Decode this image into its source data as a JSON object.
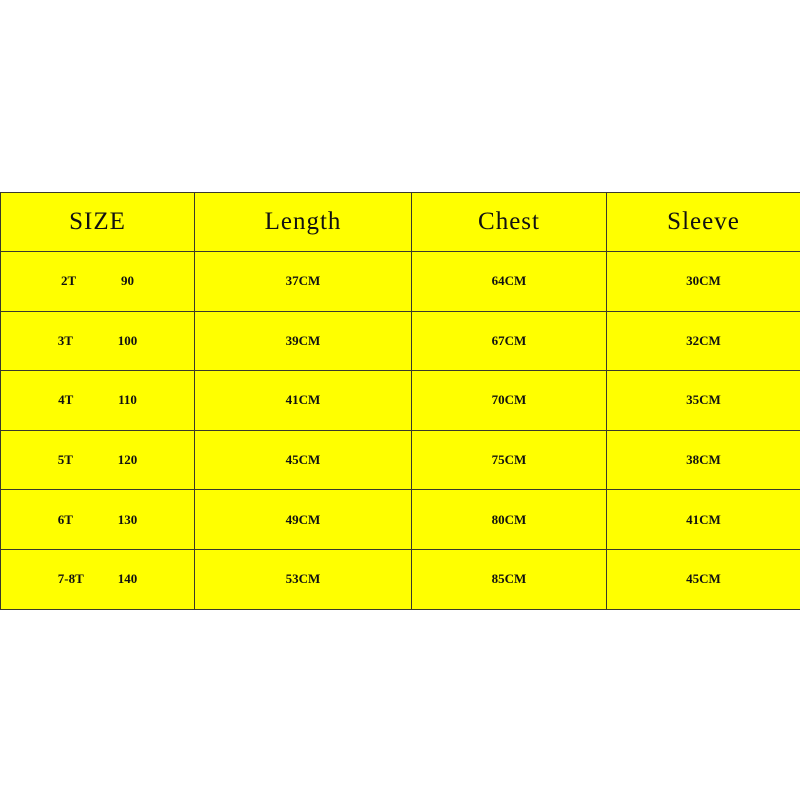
{
  "table": {
    "headers": [
      "SIZE",
      "Length",
      "Chest",
      "Sleeve"
    ],
    "rows": [
      {
        "size": "2T",
        "height": "90",
        "length": "37CM",
        "chest": "64CM",
        "sleeve": "30CM"
      },
      {
        "size": "3T",
        "height": "100",
        "length": "39CM",
        "chest": "67CM",
        "sleeve": "32CM"
      },
      {
        "size": "4T",
        "height": "110",
        "length": "41CM",
        "chest": "70CM",
        "sleeve": "35CM"
      },
      {
        "size": "5T",
        "height": "120",
        "length": "45CM",
        "chest": "75CM",
        "sleeve": "38CM"
      },
      {
        "size": "6T",
        "height": "130",
        "length": "49CM",
        "chest": "80CM",
        "sleeve": "41CM"
      },
      {
        "size": "7-8T",
        "height": "140",
        "length": "53CM",
        "chest": "85CM",
        "sleeve": "45CM"
      }
    ]
  },
  "colors": {
    "background": "#ffff00",
    "border": "#3a3a2a"
  }
}
